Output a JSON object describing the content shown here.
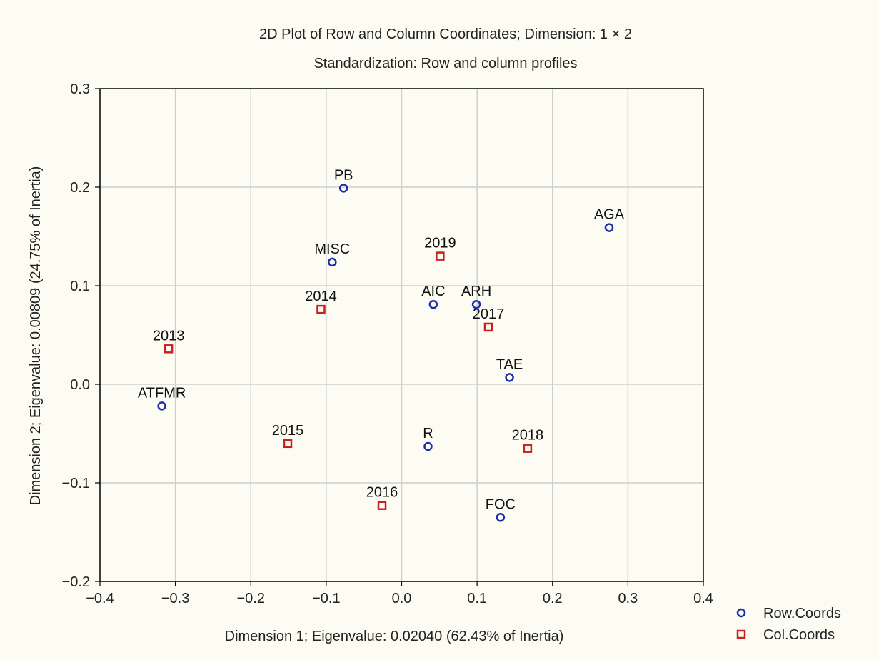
{
  "chart_data": {
    "type": "scatter",
    "title": "2D Plot of Row and Column Coordinates; Dimension:  1 × 2",
    "subtitle": "Standardization: Row and column profiles",
    "xlabel": "Dimension 1; Eigenvalue: 0.02040 (62.43% of Inertia)",
    "ylabel": "Dimension 2; Eigenvalue: 0.00809 (24.75% of Inertia)",
    "xlim": [
      -0.4,
      0.4
    ],
    "ylim": [
      -0.2,
      0.3
    ],
    "xticks": [
      "-0.4",
      "-0.3",
      "-0.2",
      "-0.1",
      "0.0",
      "0.1",
      "0.2",
      "0.3",
      "0.4"
    ],
    "yticks": [
      "-0.2",
      "-0.1",
      "0.0",
      "0.1",
      "0.2",
      "0.3"
    ],
    "grid": true,
    "legend_position": "bottom-right",
    "series": [
      {
        "name": "Row.Coords",
        "marker": "circle",
        "color": "#1c2fa8",
        "points": [
          {
            "label": "PB",
            "x": -0.077,
            "y": 0.199
          },
          {
            "label": "AGA",
            "x": 0.275,
            "y": 0.159
          },
          {
            "label": "MISC",
            "x": -0.092,
            "y": 0.124
          },
          {
            "label": "AIC",
            "x": 0.042,
            "y": 0.081
          },
          {
            "label": "ARH",
            "x": 0.099,
            "y": 0.081
          },
          {
            "label": "TAE",
            "x": 0.143,
            "y": 0.007
          },
          {
            "label": "ATFMR",
            "x": -0.318,
            "y": -0.022
          },
          {
            "label": "R",
            "x": 0.035,
            "y": -0.063
          },
          {
            "label": "FOC",
            "x": 0.131,
            "y": -0.135
          }
        ]
      },
      {
        "name": "Col.Coords",
        "marker": "square",
        "color": "#cc2020",
        "points": [
          {
            "label": "2019",
            "x": 0.051,
            "y": 0.13
          },
          {
            "label": "2014",
            "x": -0.107,
            "y": 0.076
          },
          {
            "label": "2017",
            "x": 0.115,
            "y": 0.058
          },
          {
            "label": "2013",
            "x": -0.309,
            "y": 0.036
          },
          {
            "label": "2015",
            "x": -0.151,
            "y": -0.06
          },
          {
            "label": "2018",
            "x": 0.167,
            "y": -0.065
          },
          {
            "label": "2016",
            "x": -0.026,
            "y": -0.123
          }
        ]
      }
    ]
  }
}
